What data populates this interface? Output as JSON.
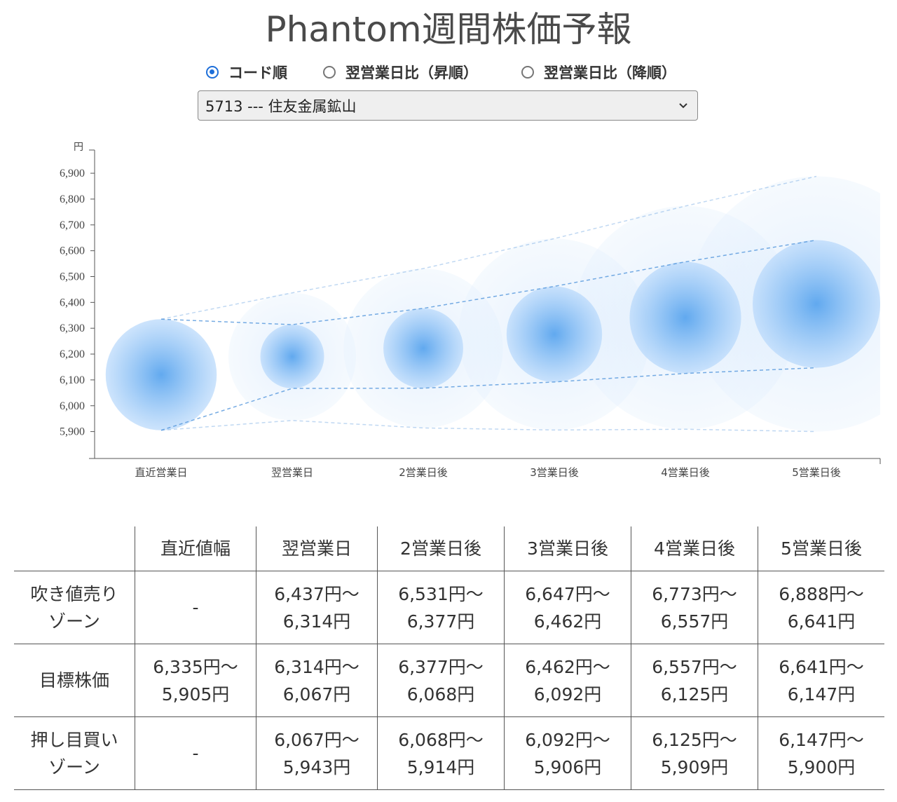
{
  "title": "Phantom週間株価予報",
  "sort_options": [
    {
      "label": "コード順",
      "checked": true
    },
    {
      "label": "翌営業日比（昇順）",
      "checked": false
    },
    {
      "label": "翌営業日比（降順）",
      "checked": false
    }
  ],
  "stock_select": {
    "value": "5713 --- 住友金属鉱山"
  },
  "chart_data": {
    "type": "scatter",
    "title": "",
    "ylabel": "円",
    "xlabel": "",
    "ylim": [
      5800,
      6920
    ],
    "yticks": [
      5900,
      6000,
      6100,
      6200,
      6300,
      6400,
      6500,
      6600,
      6700,
      6800,
      6900
    ],
    "ytick_labels": [
      "5,900",
      "6,000",
      "6,100",
      "6,200",
      "6,300",
      "6,400",
      "6,500",
      "6,600",
      "6,700",
      "6,800",
      "6,900"
    ],
    "categories": [
      "直近営業日",
      "翌営業日",
      "2営業日後",
      "3営業日後",
      "4営業日後",
      "5営業日後"
    ],
    "target_high": [
      6335,
      6314,
      6377,
      6462,
      6557,
      6641
    ],
    "target_low": [
      5905,
      6067,
      6068,
      6092,
      6125,
      6147
    ],
    "sell_zone_high": [
      null,
      6437,
      6531,
      6647,
      6773,
      6888
    ],
    "buy_zone_low": [
      null,
      5943,
      5914,
      5906,
      5909,
      5900
    ],
    "grid": false,
    "colors": {
      "bubble": "#5aa5ee",
      "line": "#4a90d9"
    }
  },
  "table": {
    "headers": [
      "",
      "直近値幅",
      "翌営業日",
      "2営業日後",
      "3営業日後",
      "4営業日後",
      "5営業日後"
    ],
    "rows": [
      {
        "label": [
          "吹き値売り",
          "ゾーン"
        ],
        "cells": [
          [
            "-"
          ],
          [
            "6,437円～",
            "6,314円"
          ],
          [
            "6,531円～",
            "6,377円"
          ],
          [
            "6,647円～",
            "6,462円"
          ],
          [
            "6,773円～",
            "6,557円"
          ],
          [
            "6,888円～",
            "6,641円"
          ]
        ]
      },
      {
        "label": [
          "目標株価"
        ],
        "cells": [
          [
            "6,335円～",
            "5,905円"
          ],
          [
            "6,314円～",
            "6,067円"
          ],
          [
            "6,377円～",
            "6,068円"
          ],
          [
            "6,462円～",
            "6,092円"
          ],
          [
            "6,557円～",
            "6,125円"
          ],
          [
            "6,641円～",
            "6,147円"
          ]
        ]
      },
      {
        "label": [
          "押し目買い",
          "ゾーン"
        ],
        "cells": [
          [
            "-"
          ],
          [
            "6,067円～",
            "5,943円"
          ],
          [
            "6,068円～",
            "5,914円"
          ],
          [
            "6,092円～",
            "5,906円"
          ],
          [
            "6,125円～",
            "5,909円"
          ],
          [
            "6,147円～",
            "5,900円"
          ]
        ]
      }
    ]
  }
}
